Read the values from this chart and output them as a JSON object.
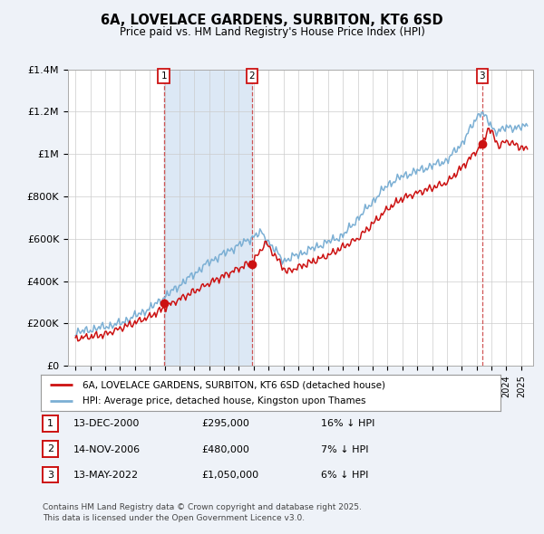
{
  "title": "6A, LOVELACE GARDENS, SURBITON, KT6 6SD",
  "subtitle": "Price paid vs. HM Land Registry's House Price Index (HPI)",
  "legend_label_red": "6A, LOVELACE GARDENS, SURBITON, KT6 6SD (detached house)",
  "legend_label_blue": "HPI: Average price, detached house, Kingston upon Thames",
  "footer": "Contains HM Land Registry data © Crown copyright and database right 2025.\nThis data is licensed under the Open Government Licence v3.0.",
  "sale_dates_num": [
    2000.95,
    2006.87,
    2022.37
  ],
  "sale_prices": [
    295000,
    480000,
    1050000
  ],
  "sale_labels": [
    "1",
    "2",
    "3"
  ],
  "sale_annotations": [
    {
      "label": "1",
      "date": "13-DEC-2000",
      "price": "£295,000",
      "hpi": "16% ↓ HPI"
    },
    {
      "label": "2",
      "date": "14-NOV-2006",
      "price": "£480,000",
      "hpi": "7% ↓ HPI"
    },
    {
      "label": "3",
      "date": "13-MAY-2022",
      "price": "£1,050,000",
      "hpi": "6% ↓ HPI"
    }
  ],
  "hpi_color": "#7bafd4",
  "price_color": "#cc1111",
  "vline_color": "#cc4444",
  "background_color": "#eef2f8",
  "plot_bg_color": "#ffffff",
  "grid_color": "#cccccc",
  "shade_color": "#dce8f5",
  "ylim": [
    0,
    1400000
  ],
  "yticks": [
    0,
    200000,
    400000,
    600000,
    800000,
    1000000,
    1200000,
    1400000
  ],
  "ytick_labels": [
    "£0",
    "£200K",
    "£400K",
    "£600K",
    "£800K",
    "£1M",
    "£1.2M",
    "£1.4M"
  ],
  "xlim_start": 1994.5,
  "xlim_end": 2025.8
}
